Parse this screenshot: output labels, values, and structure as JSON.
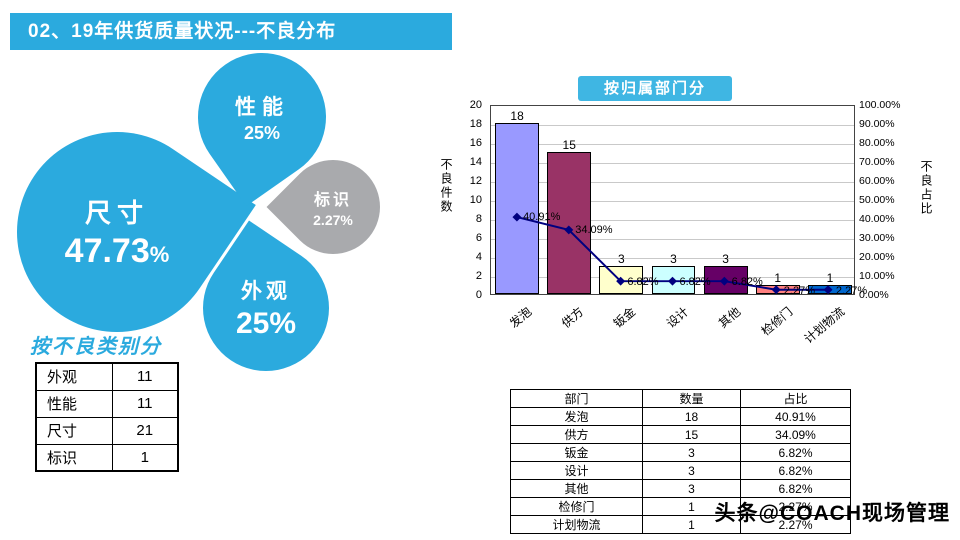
{
  "header": {
    "title": "02、19年供货质量状况---不良分布"
  },
  "chart_data": [
    {
      "type": "pie",
      "title": "按不良类别分",
      "slices": [
        {
          "label": "尺寸",
          "count": 21,
          "percent": 47.73,
          "percent_label": "47.73",
          "unit": "%",
          "color": "#2BAADE",
          "position": "big"
        },
        {
          "label": "性能",
          "count": 11,
          "percent": 25,
          "percent_label": "25%",
          "color": "#2BAADE",
          "position": "top"
        },
        {
          "label": "标识",
          "count": 1,
          "percent": 2.27,
          "percent_label": "2.27%",
          "color": "#A9AAAD",
          "position": "right"
        },
        {
          "label": "外观",
          "count": 11,
          "percent": 25,
          "percent_label": "25%",
          "color": "#2BAADE",
          "position": "bottom"
        }
      ]
    },
    {
      "type": "pareto",
      "title": "按归属部门分",
      "categories": [
        "发泡",
        "供方",
        "钣金",
        "设计",
        "其他",
        "检修门",
        "计划物流"
      ],
      "bar_values": [
        18,
        15,
        3,
        3,
        3,
        1,
        1
      ],
      "bar_colors": [
        "#9999FF",
        "#993366",
        "#FFFFCC",
        "#CCFFFF",
        "#660066",
        "#FF8080",
        "#0066CC"
      ],
      "line_values": [
        40.91,
        34.09,
        6.82,
        6.82,
        6.82,
        2.27,
        2.27
      ],
      "line_labels": [
        "40.91%",
        "34.09%",
        "6.82%",
        "6.82%",
        "6.82%",
        "2.27%",
        "2.27%"
      ],
      "line_color": "#000080",
      "left_axis": {
        "label": "不良件数",
        "min": 0,
        "max": 20,
        "step": 2
      },
      "right_axis": {
        "label": "不良占比",
        "min": 0,
        "max": 100,
        "step": 10
      },
      "grid": true,
      "legend": "none"
    }
  ],
  "category_table": {
    "rows": [
      [
        "外观",
        "11"
      ],
      [
        "性能",
        "11"
      ],
      [
        "尺寸",
        "21"
      ],
      [
        "标识",
        "1"
      ]
    ]
  },
  "dept_table": {
    "headers": [
      "部门",
      "数量",
      "占比"
    ],
    "rows": [
      [
        "发泡",
        "18",
        "40.91%"
      ],
      [
        "供方",
        "15",
        "34.09%"
      ],
      [
        "钣金",
        "3",
        "6.82%"
      ],
      [
        "设计",
        "3",
        "6.82%"
      ],
      [
        "其他",
        "3",
        "6.82%"
      ],
      [
        "检修门",
        "1",
        "2.27%"
      ],
      [
        "计划物流",
        "1",
        "2.27%"
      ]
    ]
  },
  "watermark": {
    "text": "头条@COACH现场管理"
  }
}
